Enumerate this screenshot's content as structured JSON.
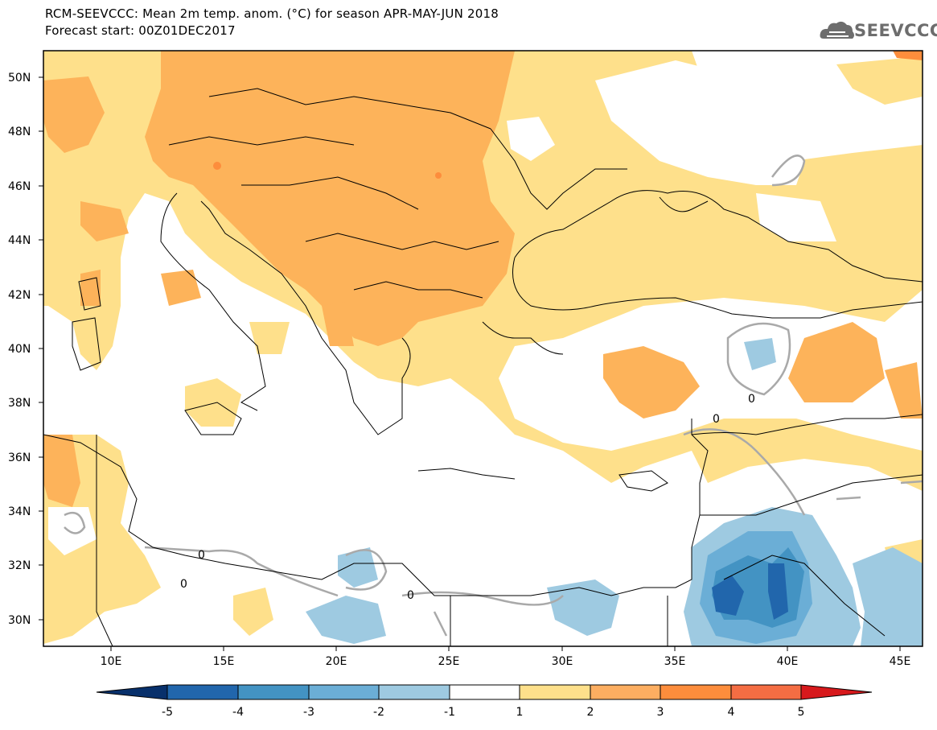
{
  "header": {
    "title": "RCM-SEEVCCC: Mean 2m temp. anom. (°C) for season APR-MAY-JUN 2018",
    "subtitle": "Forecast start: 00Z01DEC2017",
    "logo_text": "SEEVCCC"
  },
  "map": {
    "lon_range": [
      7,
      46
    ],
    "lat_range": [
      29,
      51
    ],
    "lat_ticks": [
      "50N",
      "48N",
      "46N",
      "44N",
      "42N",
      "40N",
      "38N",
      "36N",
      "34N",
      "32N",
      "30N"
    ],
    "lon_ticks": [
      "10E",
      "15E",
      "20E",
      "25E",
      "30E",
      "35E",
      "40E",
      "45E"
    ],
    "contour_label": "0"
  },
  "colorbar": {
    "boundaries": [
      "-5",
      "-4",
      "-3",
      "-2",
      "-1",
      "1",
      "2",
      "3",
      "4",
      "5"
    ],
    "colors": [
      "#08306b",
      "#2166ac",
      "#4393c3",
      "#6baed6",
      "#9ecae1",
      "#ffffff",
      "#fee08b",
      "#fdae61",
      "#fd8d3c",
      "#f46d43",
      "#d7191c"
    ]
  },
  "palette": {
    "pos1": "#fee08b",
    "pos2": "#fdb35a",
    "pos3": "#fd8d3c",
    "neg1": "#9ecae1",
    "neg2": "#6baed6",
    "neg3": "#4393c3",
    "neg4": "#2166ac",
    "contour": "#a9a9a9",
    "coast": "#000000"
  }
}
